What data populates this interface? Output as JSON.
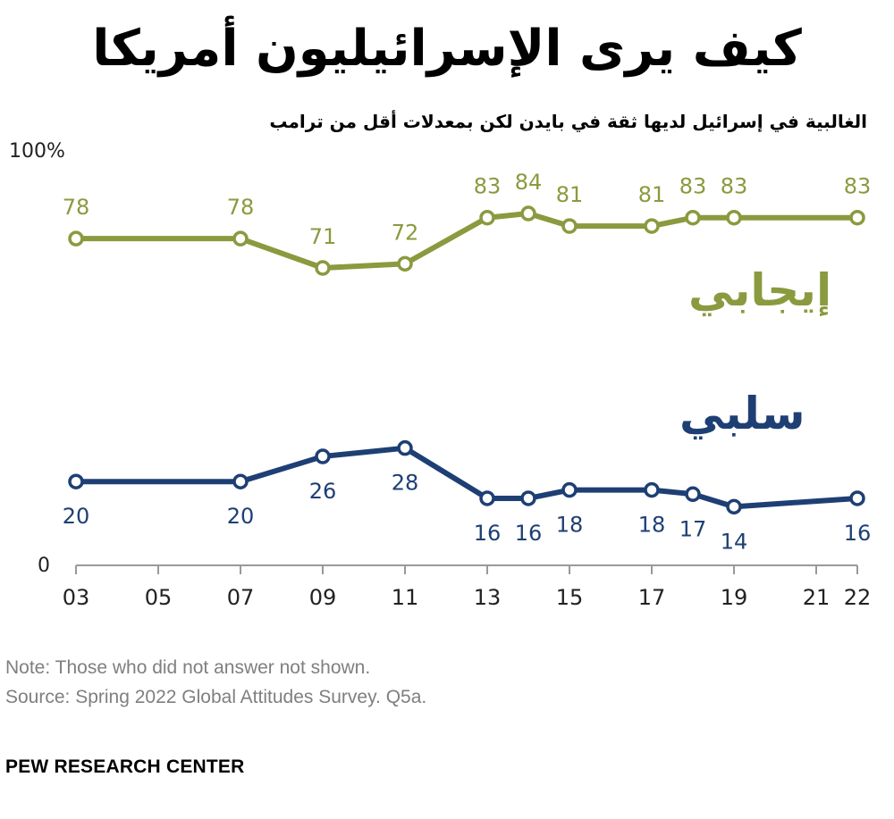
{
  "header": {
    "title": "كيف يرى الإسرائيليون أمريكا",
    "subtitle": "الغالبية في إسرائيل لديها ثقة في بايدن لكن بمعدلات أقل من ترامب"
  },
  "colors": {
    "positive": "#8a9a3f",
    "negative": "#1e3f74",
    "axis": "#999999",
    "text": "#333333"
  },
  "chart_data": {
    "type": "line",
    "x": [
      "03",
      "07",
      "09",
      "11",
      "13",
      "14",
      "15",
      "17",
      "18",
      "19",
      "22"
    ],
    "x_ticks": [
      "03",
      "05",
      "07",
      "09",
      "11",
      "13",
      "15",
      "17",
      "19",
      "21",
      "22"
    ],
    "y_ticks": [
      "100%",
      "0"
    ],
    "ylim": [
      0,
      100
    ],
    "grid": false,
    "series": [
      {
        "name": "إيجابي",
        "color": "#8a9a3f",
        "values": [
          78,
          78,
          71,
          72,
          83,
          84,
          81,
          81,
          83,
          83,
          83
        ]
      },
      {
        "name": "سلبي",
        "color": "#1e3f74",
        "values": [
          20,
          20,
          26,
          28,
          16,
          16,
          18,
          18,
          17,
          14,
          16
        ]
      }
    ]
  },
  "footer": {
    "note": "Note: Those who did not answer not shown.",
    "source": "Source: Spring 2022 Global Attitudes Survey. Q5a.",
    "brand": "PEW RESEARCH CENTER"
  }
}
